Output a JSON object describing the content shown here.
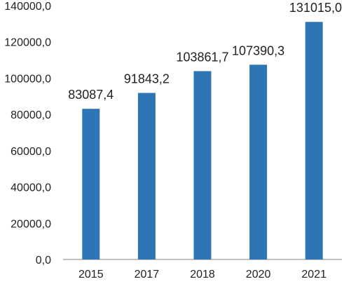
{
  "chart_data": {
    "type": "bar",
    "categories": [
      "2015",
      "2017",
      "2018",
      "2020",
      "2021"
    ],
    "values": [
      83087.4,
      91843.2,
      103861.7,
      107390.3,
      131015.0
    ],
    "data_labels": [
      "83087,4",
      "91843,2",
      "103861,7",
      "107390,3",
      "131015,0"
    ],
    "y_ticks": [
      0,
      20000,
      40000,
      60000,
      80000,
      100000,
      120000,
      140000
    ],
    "y_tick_labels": [
      "0,0",
      "20000,0",
      "40000,0",
      "60000,0",
      "80000,0",
      "100000,0",
      "120000,0",
      "140000,0"
    ],
    "ylim": [
      0,
      140000
    ],
    "grid": false,
    "legend": "none",
    "bar_color": "#2E75B6",
    "axis_color": "#808080"
  }
}
